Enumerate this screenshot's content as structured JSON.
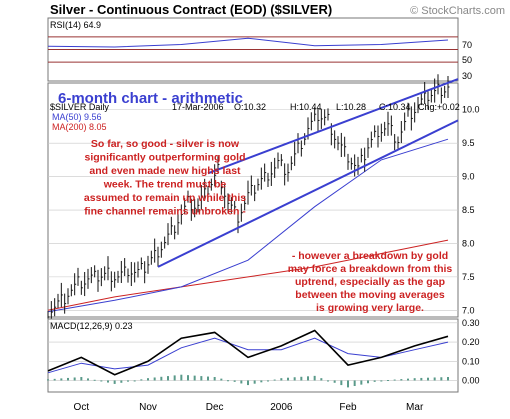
{
  "header": {
    "title": "Silver - Continuous Contract (EOD) ($SILVER)",
    "watermark": "© StockCharts.com"
  },
  "colors": {
    "channel": "#3a3fd0",
    "price": "#111111",
    "ma50": "#3a3fd0",
    "ma200": "#cc2222",
    "annotation": "#cc2222",
    "rsi_line": "#3a3fd0",
    "rsi_fill_over": "#c8a470",
    "macd_line": "#000000",
    "signal_line": "#3a3fd0",
    "hist": "#5a9a8a",
    "grid": "#c8c8c8",
    "ref_lines": "#993333"
  },
  "rsi_panel": {
    "label": "RSI(14) 64.9",
    "ticks": [
      "70",
      "50",
      "30"
    ]
  },
  "price_panel": {
    "subtitle": "6-month chart - arithmetic",
    "symbol_label": "$SILVER Daily",
    "date_label": "17-Mar-2006",
    "open_label": "O:10.32",
    "high_label": "H:10.44",
    "low_label": "L:10.28",
    "close_label": "C:10.34",
    "change_label": "Chg:+0.02",
    "ma50_label": "MA(50) 9.56",
    "ma200_label": "MA(200) 8.05",
    "annotation_1": [
      "So far, so good - silver is now",
      "significantly outperforming gold",
      "and even made new highs last",
      "week. The trend must be",
      "assumed to remain up while this",
      "fine channel remains unbroken -"
    ],
    "annotation_2": [
      "- however a breakdown by gold",
      "may force a breakdown from this",
      "uptrend, especially as the gap",
      "between the moving averages",
      "is growing very large."
    ],
    "y_ticks": [
      "10.0",
      "9.5",
      "9.0",
      "8.5",
      "8.0",
      "7.5",
      "7.0"
    ]
  },
  "macd_panel": {
    "label": "MACD(12,26,9) 0.23",
    "y_ticks": [
      "0.30",
      "0.20",
      "0.10",
      "0.00"
    ]
  },
  "x_axis": {
    "labels": [
      "Oct",
      "Nov",
      "Dec",
      "2006",
      "Feb",
      "Mar"
    ]
  },
  "chart_data": [
    {
      "type": "line",
      "title": "RSI(14) 64.9",
      "ylim": [
        0,
        100
      ],
      "reference_lines": [
        70,
        50,
        30
      ],
      "x": [
        0,
        20,
        40,
        60,
        80,
        100,
        120
      ],
      "values": [
        55,
        54,
        58,
        68,
        56,
        58,
        65
      ]
    },
    {
      "type": "line",
      "title": "$SILVER Daily",
      "x_labels": [
        "Oct",
        "Nov",
        "Dec",
        "2006",
        "Feb",
        "Mar"
      ],
      "ylim": [
        6.9,
        10.4
      ],
      "price_x": [
        0,
        3,
        6,
        9,
        12,
        15,
        18,
        21,
        24,
        27,
        30,
        33,
        36,
        39,
        42,
        45,
        48,
        51,
        54,
        57,
        60,
        63,
        66,
        69,
        72,
        75,
        78,
        81,
        84,
        87,
        90,
        93,
        96,
        99,
        102,
        105,
        108,
        111,
        114,
        117,
        120
      ],
      "price": [
        7.0,
        7.1,
        7.25,
        7.4,
        7.45,
        7.5,
        7.55,
        7.5,
        7.6,
        7.55,
        7.7,
        7.9,
        8.1,
        8.35,
        8.6,
        8.55,
        8.8,
        9.1,
        8.6,
        8.4,
        8.7,
        8.9,
        9.05,
        9.2,
        9.1,
        9.4,
        9.7,
        9.9,
        9.85,
        9.5,
        9.3,
        9.1,
        9.45,
        9.7,
        9.75,
        9.55,
        9.9,
        10.05,
        10.2,
        10.3,
        10.34
      ],
      "series": [
        {
          "name": "MA(50)",
          "x": [
            0,
            20,
            40,
            60,
            80,
            100,
            120
          ],
          "values": [
            6.98,
            7.15,
            7.35,
            7.75,
            8.55,
            9.25,
            9.56
          ]
        },
        {
          "name": "MA(200)",
          "x": [
            0,
            20,
            40,
            60,
            80,
            100,
            120
          ],
          "values": [
            7.0,
            7.2,
            7.35,
            7.5,
            7.65,
            7.85,
            8.05
          ]
        }
      ],
      "channel": {
        "upper": {
          "x": [
            48,
            120
          ],
          "values": [
            9.05,
            10.35
          ]
        },
        "lower": {
          "x": [
            33,
            120
          ],
          "values": [
            7.65,
            9.7
          ]
        }
      }
    },
    {
      "type": "line",
      "title": "MACD(12,26,9) 0.23",
      "ylim": [
        -0.06,
        0.32
      ],
      "x": [
        0,
        10,
        20,
        30,
        40,
        50,
        60,
        70,
        80,
        90,
        100,
        110,
        120
      ],
      "series": [
        {
          "name": "MACD",
          "values": [
            0.05,
            0.12,
            0.03,
            0.1,
            0.22,
            0.25,
            0.12,
            0.18,
            0.26,
            0.08,
            0.12,
            0.18,
            0.23
          ]
        },
        {
          "name": "Signal",
          "values": [
            0.04,
            0.09,
            0.06,
            0.08,
            0.17,
            0.22,
            0.16,
            0.16,
            0.22,
            0.14,
            0.12,
            0.16,
            0.2
          ]
        }
      ]
    }
  ]
}
